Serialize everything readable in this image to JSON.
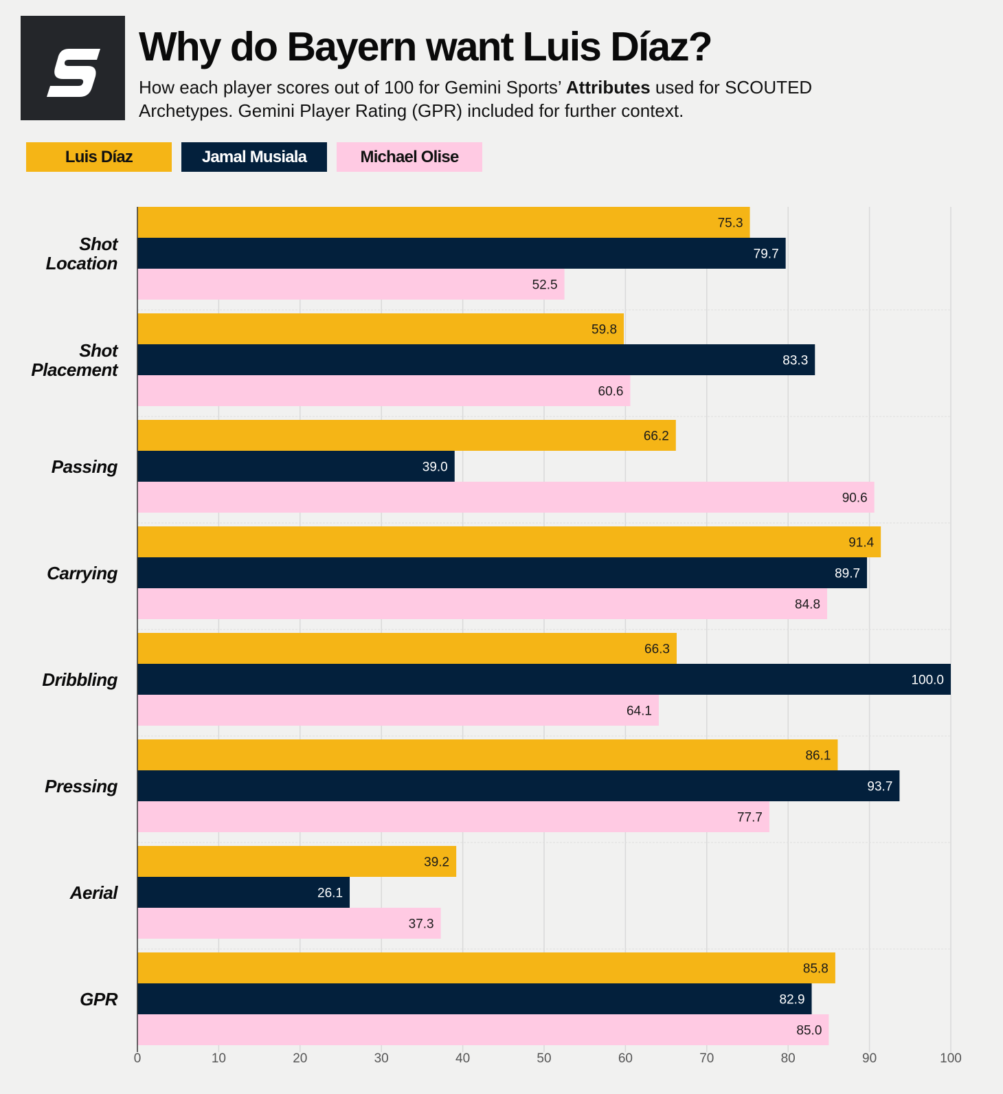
{
  "header": {
    "logo_letter": "S",
    "title": "Why do Bayern want Luis Díaz?",
    "subtitle_pre": "How each player scores out of 100 for Gemini Sports’ ",
    "subtitle_bold": "Attributes",
    "subtitle_post": " used for SCOUTED Archetypes. Gemini Player Rating (GPR) included for further context."
  },
  "colors": {
    "background": "#f1f1f0",
    "logo_bg": "#24262a",
    "gridline": "#d9d9d9"
  },
  "chart_data": {
    "type": "bar",
    "orientation": "horizontal",
    "title": "Why do Bayern want Luis Díaz?",
    "subtitle": "How each player scores out of 100 for Gemini Sports’ Attributes used for SCOUTED Archetypes. Gemini Player Rating (GPR) included for further context.",
    "xlabel": "",
    "ylabel": "",
    "xlim": [
      0,
      100
    ],
    "x_ticks": [
      0,
      10,
      20,
      30,
      40,
      50,
      60,
      70,
      80,
      90,
      100
    ],
    "grid": true,
    "legend_position": "top-left",
    "categories": [
      [
        "Shot",
        "Location"
      ],
      [
        "Shot",
        "Placement"
      ],
      [
        "Passing"
      ],
      [
        "Carrying"
      ],
      [
        "Dribbling"
      ],
      [
        "Pressing"
      ],
      [
        "Aerial"
      ],
      [
        "GPR"
      ]
    ],
    "series": [
      {
        "name": "Luis Díaz",
        "color": "#f5b516",
        "label_color": "#1a1a1a",
        "values": [
          75.3,
          59.8,
          66.2,
          91.4,
          66.3,
          86.1,
          39.2,
          85.8
        ],
        "labels": [
          "75.3",
          "59.8",
          "66.2",
          "91.4",
          "66.3",
          "86.1",
          "39.2",
          "85.8"
        ]
      },
      {
        "name": "Jamal Musiala",
        "color": "#03203c",
        "label_color": "#ffffff",
        "values": [
          79.7,
          83.3,
          39.0,
          89.7,
          100.0,
          93.7,
          26.1,
          82.9
        ],
        "labels": [
          "79.7",
          "83.3",
          "39.0",
          "89.7",
          "100.0",
          "93.7",
          "26.1",
          "82.9"
        ]
      },
      {
        "name": "Michael Olise",
        "color": "#ffcae3",
        "label_color": "#1a1a1a",
        "values": [
          52.5,
          60.6,
          90.6,
          84.8,
          64.1,
          77.7,
          37.3,
          85.0
        ],
        "labels": [
          "52.5",
          "60.6",
          "90.6",
          "84.8",
          "64.1",
          "77.7",
          "37.3",
          "85.0"
        ]
      }
    ]
  }
}
